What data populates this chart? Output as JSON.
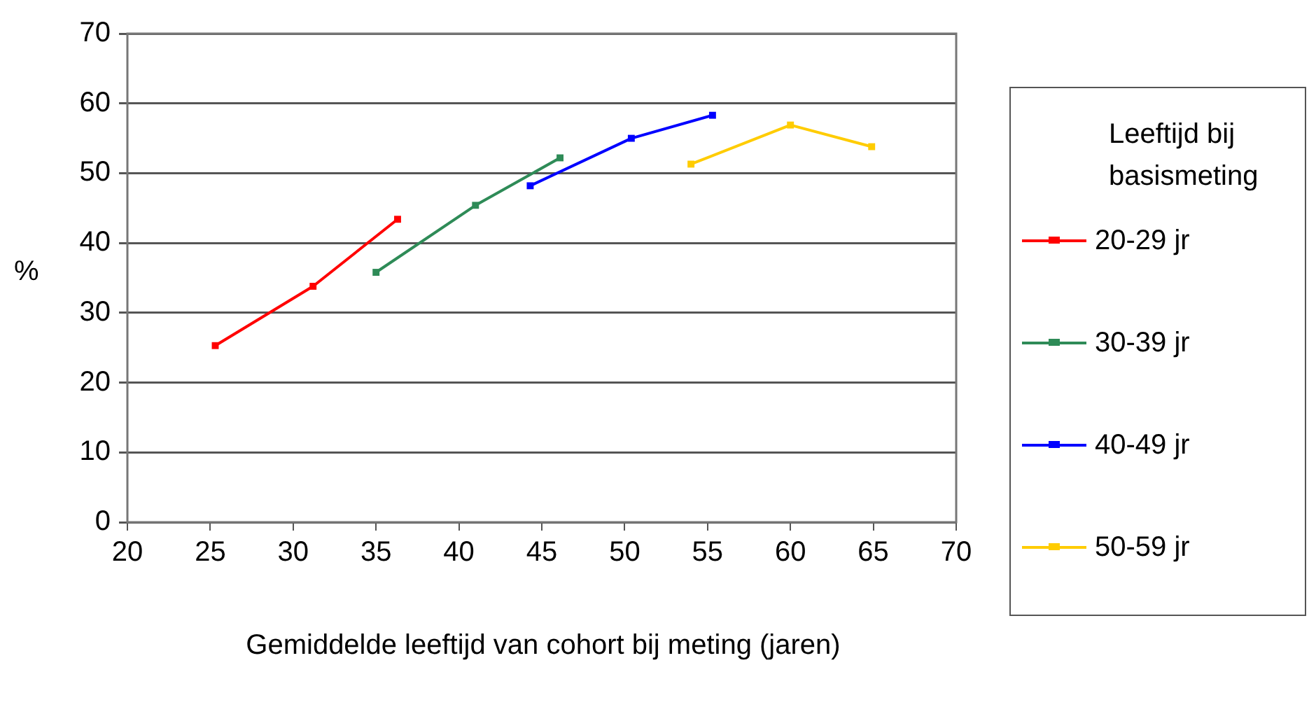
{
  "chart_data": {
    "type": "line",
    "xlabel": "Gemiddelde leeftijd van cohort bij meting (jaren)",
    "ylabel": "%",
    "legend_title": "Leeftijd bij basismeting",
    "xlim": [
      20,
      70
    ],
    "xticks": [
      20,
      25,
      30,
      35,
      40,
      45,
      50,
      55,
      60,
      65,
      70
    ],
    "ylim": [
      0,
      70
    ],
    "yticks": [
      0,
      10,
      20,
      30,
      40,
      50,
      60,
      70
    ],
    "grid": "y",
    "legend": "right",
    "marker": "square",
    "line_style": "solid",
    "series": [
      {
        "name": "20-29 jr",
        "color": "#ff0000",
        "x": [
          25.3,
          31.2,
          36.3
        ],
        "values": [
          25.3,
          33.8,
          43.4
        ]
      },
      {
        "name": "30-39 jr",
        "color": "#2e8b57",
        "x": [
          35.0,
          41.0,
          46.1
        ],
        "values": [
          35.8,
          45.4,
          52.2
        ]
      },
      {
        "name": "40-49 jr",
        "color": "#0000ff",
        "x": [
          44.3,
          50.4,
          55.3
        ],
        "values": [
          48.2,
          55.0,
          58.3
        ]
      },
      {
        "name": "50-59 jr",
        "color": "#ffcc00",
        "x": [
          54.0,
          60.0,
          64.9
        ],
        "values": [
          51.3,
          56.9,
          53.8
        ]
      }
    ]
  }
}
